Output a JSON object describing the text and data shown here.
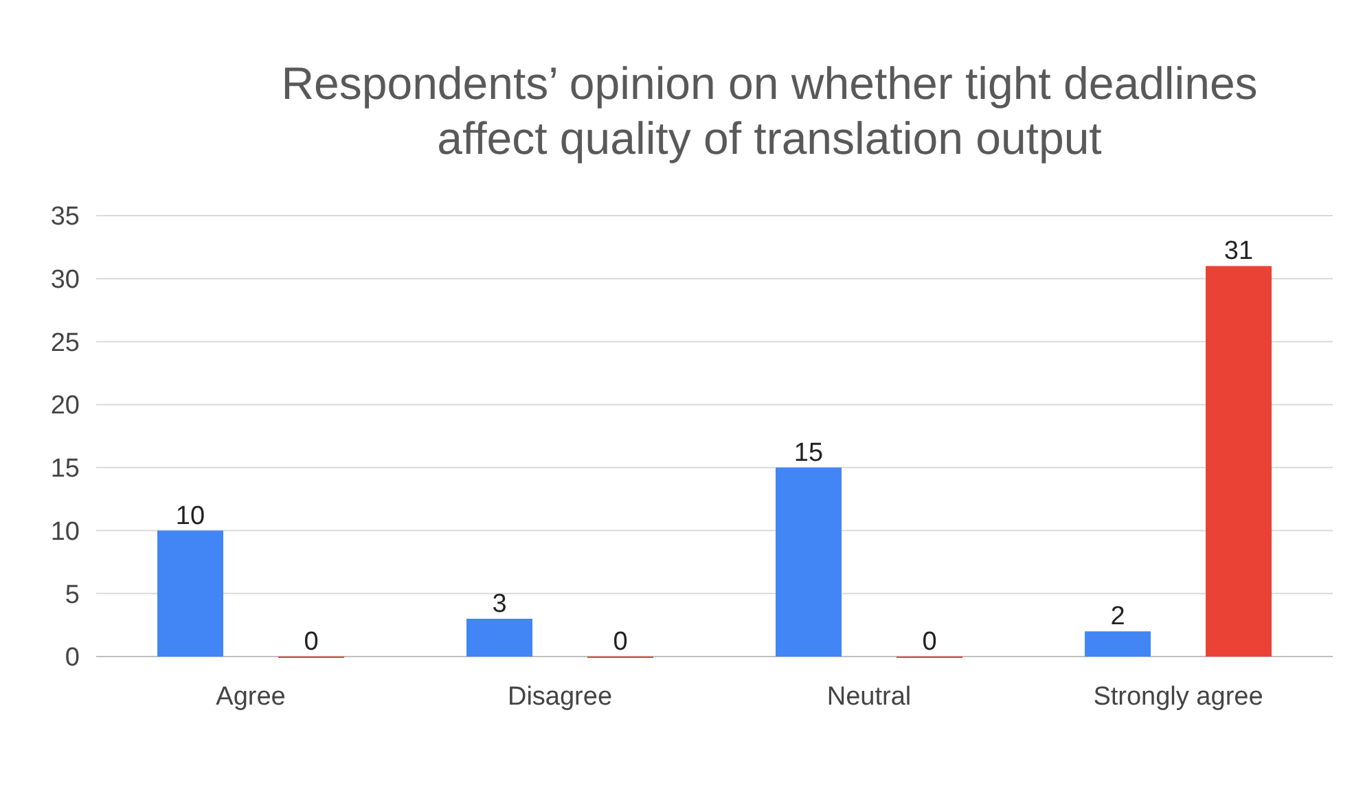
{
  "chart_data": {
    "type": "bar",
    "title": "Respondents’ opinion on whether tight deadlines affect quality of translation output",
    "categories": [
      "Agree",
      "Disagree",
      "Neutral",
      "Strongly agree"
    ],
    "series": [
      {
        "color": "#4285f4",
        "values": [
          10,
          3,
          15,
          2
        ]
      },
      {
        "color": "#ea4335",
        "values": [
          0,
          0,
          0,
          31
        ]
      }
    ],
    "ylim": [
      0,
      35
    ],
    "yticks": [
      0,
      5,
      10,
      15,
      20,
      25,
      30,
      35
    ],
    "grid": "y",
    "data_labels": true
  }
}
